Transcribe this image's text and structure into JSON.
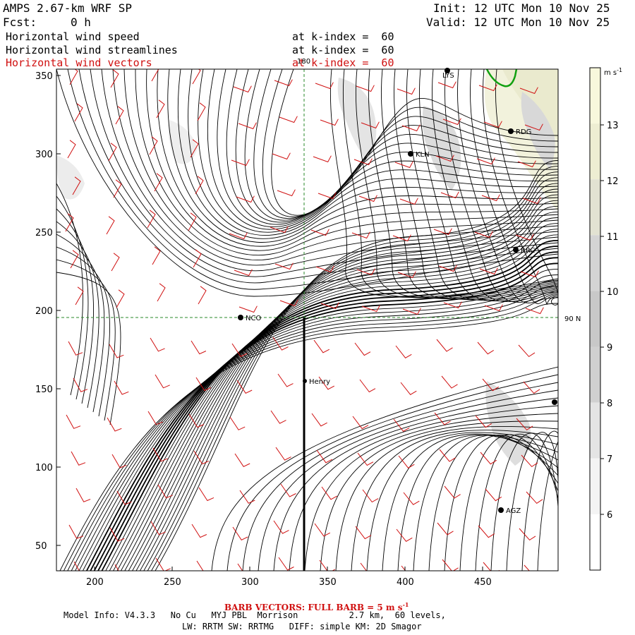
{
  "header": {
    "model": "AMPS 2.67-km WRF SP",
    "init": "Init: 12 UTC Mon 10 Nov 25",
    "fcst_label": "Fcst:",
    "fcst_value": "0 h",
    "valid": "Valid: 12 UTC Mon 10 Nov 25",
    "fields": [
      {
        "name": "Horizontal wind speed",
        "level": "at k-index =  60"
      },
      {
        "name": "Horizontal wind streamlines",
        "level": "at k-index =  60"
      },
      {
        "name": "Horizontal wind vectors",
        "level": "at k-index =  60"
      }
    ]
  },
  "map": {
    "x_ticks": [
      "200",
      "250",
      "300",
      "350",
      "400",
      "450"
    ],
    "y_ticks": [
      "350",
      "300",
      "250",
      "200",
      "150",
      "100",
      "50"
    ],
    "meridian_label": "180",
    "latitude_label": "90 N",
    "stations": [
      {
        "name": "NCO"
      },
      {
        "name": "Henry"
      },
      {
        "name": "KLN"
      },
      {
        "name": "RDG"
      },
      {
        "name": "RRC"
      },
      {
        "name": "AGZ"
      },
      {
        "name": "LYS"
      },
      {
        "name": ""
      }
    ]
  },
  "colorbar": {
    "unit": "m s",
    "unit_exp": "-1",
    "labels": [
      "13",
      "12",
      "11",
      "10",
      "9",
      "8",
      "7",
      "6"
    ],
    "colors": [
      "#f8f8dc",
      "#eeeed2",
      "#e2e2d2",
      "#d4d4d4",
      "#c8c8c8",
      "#d0d0d0",
      "#e4e4e4",
      "#f4f4f4",
      "#ffffff"
    ]
  },
  "footer": {
    "barb_note": "BARB VECTORS: FULL BARB = 5 m s",
    "barb_exp": "-1",
    "model_info": "Model Info: V4.3.3   No Cu   MYJ PBL  Morrison          2.7 km,  60 levels,",
    "physics": "LW: RRTM SW: RRTMG   DIFF: simple KM: 2D Smagor"
  }
}
